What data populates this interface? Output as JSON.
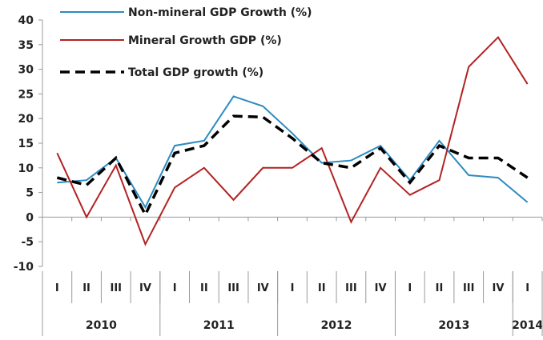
{
  "chart_data": {
    "type": "line",
    "title": "",
    "xlabel": "",
    "ylabel": "",
    "ylim": [
      -10,
      40
    ],
    "yticks": [
      -10,
      -5,
      0,
      5,
      10,
      15,
      20,
      25,
      30,
      35,
      40
    ],
    "grid": false,
    "legend_placement": "top",
    "categories": [
      "I",
      "II",
      "III",
      "IV",
      "I",
      "II",
      "III",
      "IV",
      "I",
      "II",
      "III",
      "IV",
      "I",
      "II",
      "III",
      "IV",
      "I"
    ],
    "years": [
      {
        "label": "2010",
        "quarters": 4
      },
      {
        "label": "2011",
        "quarters": 4
      },
      {
        "label": "2012",
        "quarters": 4
      },
      {
        "label": "2013",
        "quarters": 4
      },
      {
        "label": "2014",
        "quarters": 1
      }
    ],
    "series": [
      {
        "name": "Non-mineral GDP Growth (%)",
        "color": "#2e8bc0",
        "dash": false,
        "values": [
          7,
          7.5,
          12,
          2,
          14.5,
          15.5,
          24.5,
          22.5,
          17,
          11,
          11.5,
          14.5,
          7.5,
          15.5,
          8.5,
          8,
          3
        ]
      },
      {
        "name": "Mineral Growth GDP (%)",
        "color": "#b22222",
        "dash": false,
        "values": [
          13,
          0,
          10.5,
          -5.5,
          6,
          10,
          3.5,
          10,
          10,
          14,
          -1,
          10,
          4.5,
          7.5,
          30.5,
          36.5,
          27
        ]
      },
      {
        "name": "Total GDP growth (%)",
        "color": "#000000",
        "dash": true,
        "values": [
          8,
          6.5,
          12,
          0.5,
          13,
          14.5,
          20.5,
          20.3,
          16,
          11,
          10,
          14,
          7,
          14.5,
          12,
          12,
          8
        ]
      }
    ]
  }
}
